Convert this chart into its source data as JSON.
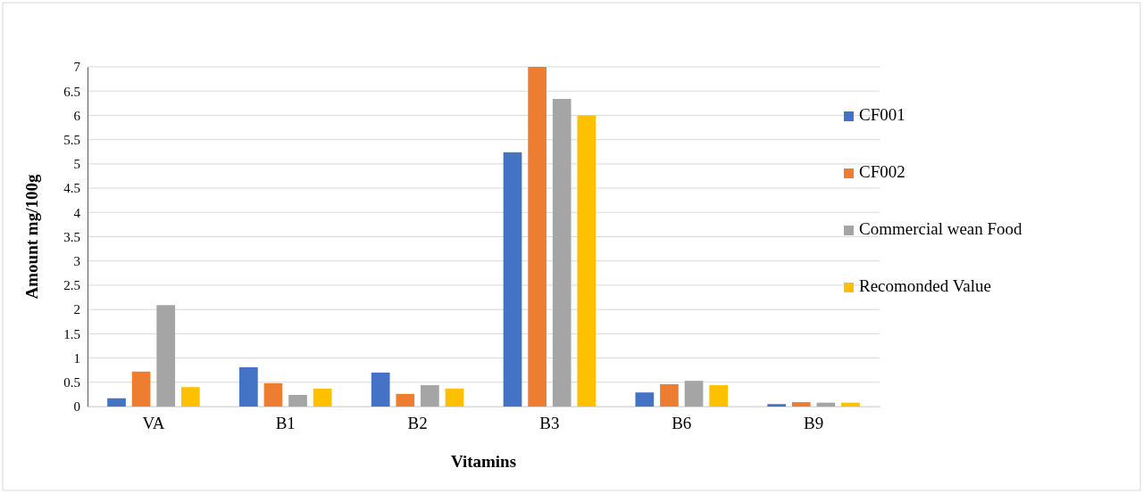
{
  "chart_data": {
    "type": "bar",
    "xlabel": "Vitamins",
    "ylabel": "Amount mg/100g",
    "categories": [
      "VA",
      "B1",
      "B2",
      "B3",
      "B6",
      "B9"
    ],
    "series": [
      {
        "name": "CF001",
        "color": "#4472c4",
        "values": [
          0.17,
          0.81,
          0.7,
          5.24,
          0.29,
          0.05
        ]
      },
      {
        "name": "CF002",
        "color": "#ed7d31",
        "values": [
          0.72,
          0.48,
          0.26,
          7,
          0.46,
          0.09
        ]
      },
      {
        "name": "Commercial wean Food",
        "color": "#a5a5a5",
        "values": [
          2.09,
          0.24,
          0.44,
          6.34,
          0.53,
          0.08
        ]
      },
      {
        "name": "Recomonded Value",
        "color": "#ffc000",
        "values": [
          0.4,
          0.37,
          0.37,
          6,
          0.44,
          0.08
        ]
      }
    ],
    "ylim": [
      0,
      7
    ],
    "yticks": [
      0,
      0.5,
      1,
      1.5,
      2,
      2.5,
      3,
      3.5,
      4,
      4.5,
      5,
      5.5,
      6,
      6.5,
      7
    ],
    "grid": "y",
    "legend": "right"
  }
}
